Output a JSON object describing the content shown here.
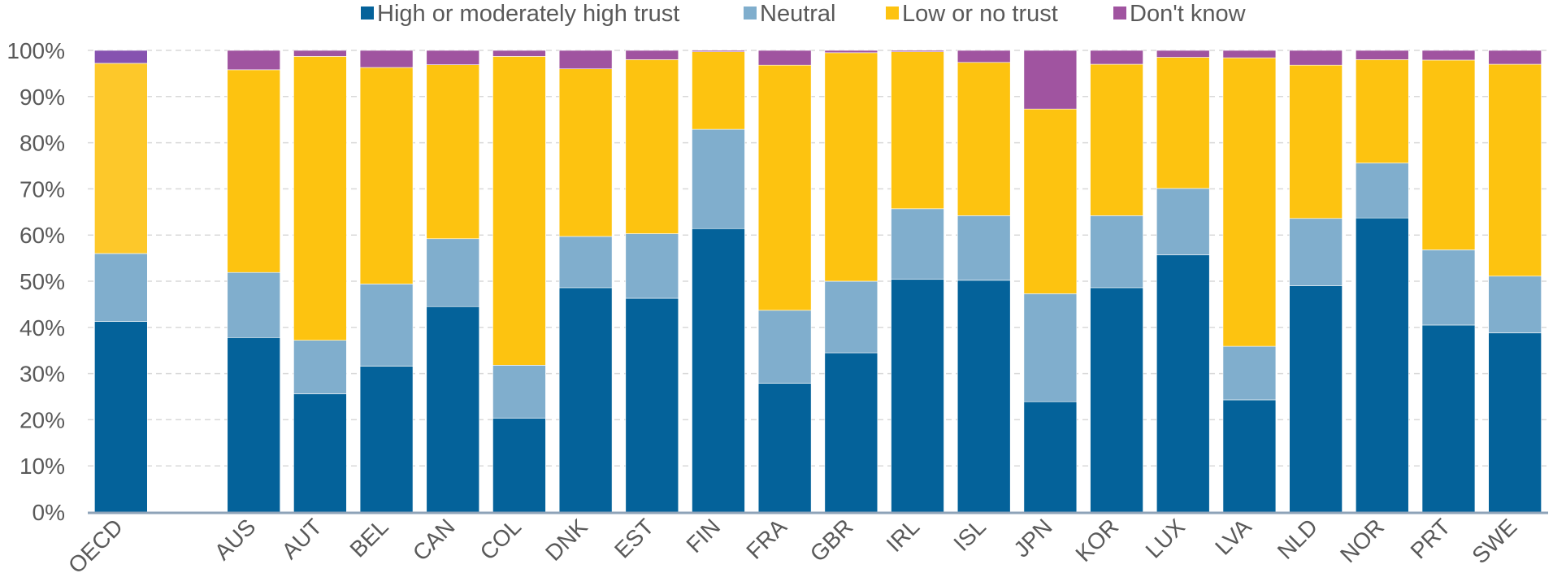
{
  "chart_data": {
    "type": "bar",
    "stacked": true,
    "title": "",
    "xlabel": "",
    "ylabel": "",
    "ylim": [
      0,
      100
    ],
    "y_ticks": [
      "0%",
      "10%",
      "20%",
      "30%",
      "40%",
      "50%",
      "60%",
      "70%",
      "80%",
      "90%",
      "100%"
    ],
    "grid": true,
    "legend_position": "top-center",
    "categories": [
      "OECD",
      "",
      "AUS",
      "AUT",
      "BEL",
      "CAN",
      "COL",
      "DNK",
      "EST",
      "FIN",
      "FRA",
      "GBR",
      "IRL",
      "ISL",
      "JPN",
      "KOR",
      "LUX",
      "LVA",
      "NLD",
      "NOR",
      "PRT",
      "SWE"
    ],
    "series": [
      {
        "name": "High or moderately high trust",
        "color": "#04629a",
        "values": [
          41.3,
          null,
          37.8,
          25.6,
          31.6,
          44.5,
          20.3,
          48.6,
          46.3,
          61.4,
          27.9,
          34.5,
          50.4,
          50.2,
          23.9,
          48.6,
          55.7,
          24.3,
          49.0,
          63.7,
          40.5,
          38.8
        ]
      },
      {
        "name": "Neutral",
        "color": "#80aecd",
        "values": [
          14.7,
          null,
          14.1,
          11.6,
          17.8,
          14.7,
          11.5,
          11.1,
          14.0,
          21.5,
          15.8,
          15.5,
          15.3,
          14.0,
          23.4,
          15.6,
          14.4,
          11.6,
          14.6,
          11.9,
          16.3,
          12.3
        ]
      },
      {
        "name": "Low or no trust",
        "color": "#fdc310",
        "values": [
          41.2,
          null,
          43.9,
          61.5,
          46.9,
          37.7,
          66.9,
          36.3,
          37.7,
          16.8,
          53.1,
          49.5,
          34.0,
          33.2,
          40.0,
          32.8,
          28.4,
          62.5,
          33.2,
          22.4,
          41.1,
          45.9
        ]
      },
      {
        "name": "Don't know",
        "color": "#a054a0",
        "values": [
          2.8,
          null,
          4.2,
          1.3,
          3.7,
          3.1,
          1.3,
          4.0,
          2.0,
          0.3,
          3.2,
          0.5,
          0.3,
          2.6,
          12.7,
          3.0,
          1.5,
          1.6,
          3.2,
          2.0,
          2.1,
          3.0
        ]
      }
    ],
    "highlight": {
      "category": "OECD",
      "colors": [
        "#04629a",
        "#80aecd",
        "#fdc82a",
        "#8652b0"
      ]
    }
  }
}
